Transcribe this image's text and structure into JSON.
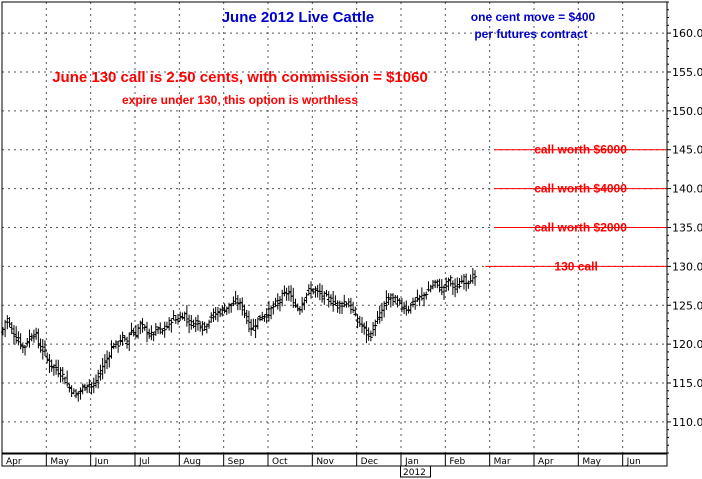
{
  "chart_data": {
    "type": "bar",
    "subtype": "ohlc",
    "title": "June 2012 Live Cattle",
    "note_lines": [
      "one cent move = $400",
      "per futures contract"
    ],
    "headline": "June 130 call is 2.50 cents, with commission = $1060",
    "subheadline": "expire under 130, this option is worthless",
    "ylim": [
      106,
      164
    ],
    "y_ticks": [
      110,
      115,
      120,
      125,
      130,
      135,
      140,
      145,
      150,
      155,
      160
    ],
    "x_months": [
      "Apr",
      "May",
      "Jun",
      "Jul",
      "Aug",
      "Sep",
      "Oct",
      "Nov",
      "Dec",
      "Jan",
      "Feb",
      "Mar",
      "Apr",
      "May",
      "Jun"
    ],
    "year_label": "2012",
    "year_label_month_index": 9,
    "reference_lines": [
      {
        "label": "130 call",
        "value": 130,
        "start_month_index": 10.9
      },
      {
        "label": "call worth $2000",
        "value": 135,
        "start_month_index": 11.1
      },
      {
        "label": "call worth $4000",
        "value": 140,
        "start_month_index": 11.1
      },
      {
        "label": "call worth $6000",
        "value": 145,
        "start_month_index": 11.1
      }
    ],
    "price_path": [
      [
        0.0,
        121.5
      ],
      [
        0.1,
        123.5
      ],
      [
        0.2,
        122.0
      ],
      [
        0.35,
        120.5
      ],
      [
        0.5,
        119.5
      ],
      [
        0.6,
        120.8
      ],
      [
        0.75,
        121.5
      ],
      [
        0.85,
        119.5
      ],
      [
        0.95,
        119.2
      ],
      [
        1.05,
        117.5
      ],
      [
        1.2,
        116.8
      ],
      [
        1.35,
        116.2
      ],
      [
        1.45,
        115.0
      ],
      [
        1.55,
        114.2
      ],
      [
        1.65,
        113.5
      ],
      [
        1.75,
        113.8
      ],
      [
        1.85,
        114.5
      ],
      [
        1.95,
        115.0
      ],
      [
        2.05,
        114.3
      ],
      [
        2.15,
        115.5
      ],
      [
        2.25,
        117.0
      ],
      [
        2.4,
        118.5
      ],
      [
        2.5,
        120.0
      ],
      [
        2.6,
        119.8
      ],
      [
        2.7,
        121.0
      ],
      [
        2.8,
        120.0
      ],
      [
        2.9,
        122.0
      ],
      [
        3.0,
        121.0
      ],
      [
        3.1,
        122.5
      ],
      [
        3.25,
        121.8
      ],
      [
        3.35,
        121.0
      ],
      [
        3.5,
        122.0
      ],
      [
        3.6,
        121.5
      ],
      [
        3.75,
        122.5
      ],
      [
        3.85,
        123.5
      ],
      [
        3.95,
        123.0
      ],
      [
        4.1,
        124.0
      ],
      [
        4.25,
        122.5
      ],
      [
        4.4,
        123.0
      ],
      [
        4.55,
        122.0
      ],
      [
        4.7,
        123.5
      ],
      [
        4.85,
        124.0
      ],
      [
        5.0,
        124.5
      ],
      [
        5.15,
        125.0
      ],
      [
        5.3,
        125.5
      ],
      [
        5.45,
        124.5
      ],
      [
        5.55,
        122.5
      ],
      [
        5.65,
        122.0
      ],
      [
        5.75,
        123.0
      ],
      [
        5.85,
        123.5
      ],
      [
        6.0,
        124.0
      ],
      [
        6.15,
        125.0
      ],
      [
        6.3,
        126.0
      ],
      [
        6.45,
        126.8
      ],
      [
        6.55,
        125.5
      ],
      [
        6.7,
        124.5
      ],
      [
        6.8,
        125.8
      ],
      [
        6.9,
        126.8
      ],
      [
        7.0,
        127.0
      ],
      [
        7.15,
        126.5
      ],
      [
        7.3,
        126.0
      ],
      [
        7.45,
        125.5
      ],
      [
        7.6,
        125.0
      ],
      [
        7.75,
        125.5
      ],
      [
        7.9,
        124.5
      ],
      [
        8.0,
        123.0
      ],
      [
        8.1,
        122.5
      ],
      [
        8.2,
        121.5
      ],
      [
        8.3,
        121.0
      ],
      [
        8.4,
        122.5
      ],
      [
        8.55,
        124.0
      ],
      [
        8.65,
        125.5
      ],
      [
        8.75,
        126.0
      ],
      [
        8.9,
        125.5
      ],
      [
        9.0,
        125.0
      ],
      [
        9.15,
        124.5
      ],
      [
        9.3,
        125.5
      ],
      [
        9.45,
        126.0
      ],
      [
        9.6,
        126.8
      ],
      [
        9.7,
        127.5
      ],
      [
        9.8,
        128.0
      ],
      [
        9.9,
        127.0
      ],
      [
        10.0,
        127.5
      ],
      [
        10.1,
        128.5
      ],
      [
        10.2,
        127.0
      ],
      [
        10.3,
        127.5
      ],
      [
        10.4,
        128.3
      ],
      [
        10.5,
        128.0
      ],
      [
        10.6,
        128.8
      ],
      [
        10.7,
        128.0
      ]
    ]
  }
}
